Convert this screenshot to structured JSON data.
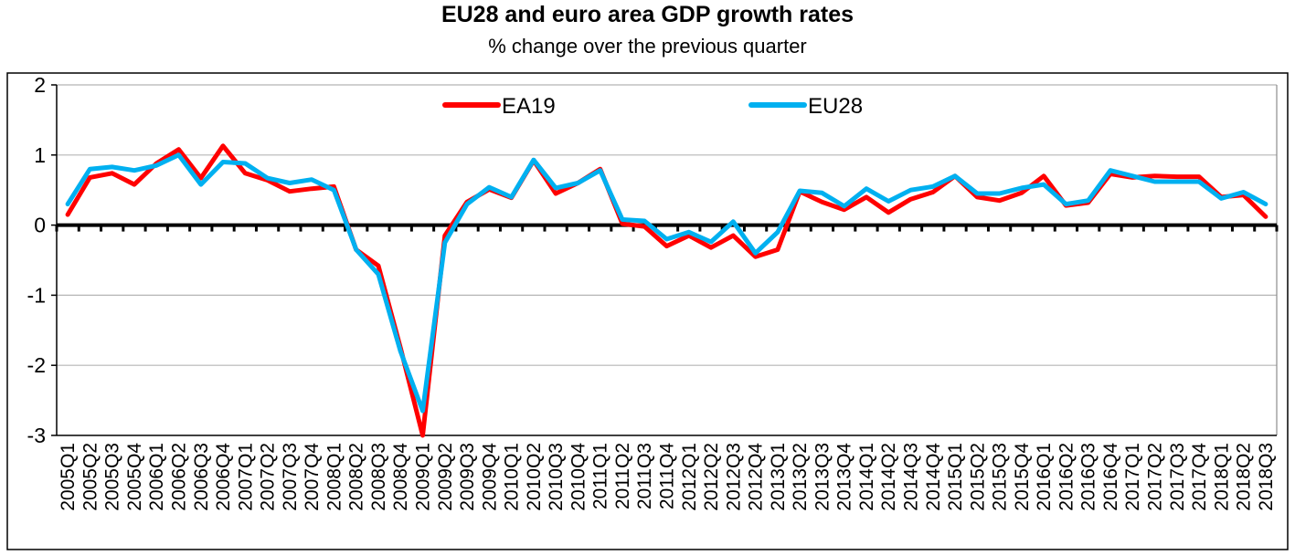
{
  "chart_data": {
    "type": "line",
    "title": "EU28 and euro area GDP growth rates",
    "subtitle": "% change over the previous quarter",
    "xlabel": "",
    "ylabel": "",
    "ylim": [
      -3,
      2
    ],
    "yticks": [
      "2",
      "1",
      "0",
      "-1",
      "-2",
      "-3"
    ],
    "grid": true,
    "legend_position": "top-center",
    "x": [
      "2005Q1",
      "2005Q2",
      "2005Q3",
      "2005Q4",
      "2006Q1",
      "2006Q2",
      "2006Q3",
      "2006Q4",
      "2007Q1",
      "2007Q2",
      "2007Q3",
      "2007Q4",
      "2008Q1",
      "2008Q2",
      "2008Q3",
      "2008Q4",
      "2009Q1",
      "2009Q2",
      "2009Q3",
      "2009Q4",
      "2010Q1",
      "2010Q2",
      "2010Q3",
      "2010Q4",
      "2011Q1",
      "2011Q2",
      "2011Q3",
      "2011Q4",
      "2012Q1",
      "2012Q2",
      "2012Q3",
      "2012Q4",
      "2013Q1",
      "2013Q2",
      "2013Q3",
      "2013Q4",
      "2014Q1",
      "2014Q2",
      "2014Q3",
      "2014Q4",
      "2015Q1",
      "2015Q2",
      "2015Q3",
      "2015Q4",
      "2016Q1",
      "2016Q2",
      "2016Q3",
      "2016Q4",
      "2017Q1",
      "2017Q2",
      "2017Q3",
      "2017Q4",
      "2018Q1",
      "2018Q2",
      "2018Q3"
    ],
    "series": [
      {
        "name": "EA19",
        "color": "#ff0000",
        "values": [
          0.15,
          0.68,
          0.74,
          0.58,
          0.88,
          1.08,
          0.67,
          1.13,
          0.74,
          0.64,
          0.48,
          0.52,
          0.55,
          -0.35,
          -0.58,
          -1.75,
          -3.0,
          -0.15,
          0.33,
          0.51,
          0.39,
          0.92,
          0.45,
          0.6,
          0.8,
          0.02,
          -0.02,
          -0.3,
          -0.15,
          -0.32,
          -0.15,
          -0.45,
          -0.35,
          0.48,
          0.33,
          0.22,
          0.4,
          0.18,
          0.37,
          0.47,
          0.7,
          0.4,
          0.35,
          0.46,
          0.7,
          0.28,
          0.32,
          0.73,
          0.68,
          0.7,
          0.69,
          0.69,
          0.4,
          0.43,
          0.12
        ]
      },
      {
        "name": "EU28",
        "color": "#00b0f0",
        "values": [
          0.3,
          0.8,
          0.83,
          0.78,
          0.85,
          1.0,
          0.58,
          0.9,
          0.88,
          0.67,
          0.6,
          0.65,
          0.5,
          -0.35,
          -0.7,
          -1.8,
          -2.65,
          -0.25,
          0.3,
          0.54,
          0.4,
          0.93,
          0.53,
          0.6,
          0.78,
          0.08,
          0.06,
          -0.2,
          -0.1,
          -0.24,
          0.05,
          -0.4,
          -0.1,
          0.49,
          0.46,
          0.27,
          0.52,
          0.34,
          0.5,
          0.55,
          0.7,
          0.45,
          0.45,
          0.53,
          0.58,
          0.3,
          0.35,
          0.78,
          0.7,
          0.62,
          0.62,
          0.62,
          0.38,
          0.47,
          0.3
        ]
      }
    ]
  }
}
